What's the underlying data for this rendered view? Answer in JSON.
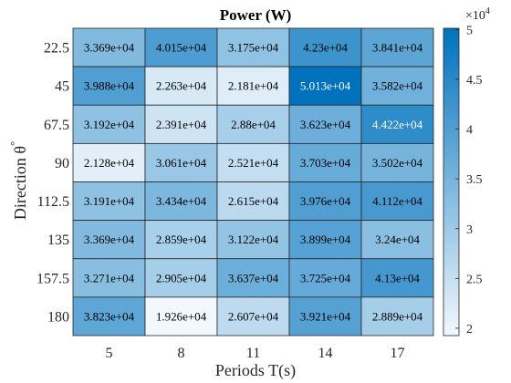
{
  "chart_data": {
    "type": "heatmap",
    "title": "Power (W)",
    "xlabel": "Periods T(s)",
    "ylabel": "Direction θ°",
    "ylabel_base": "Direction θ",
    "ylabel_sup": "°",
    "x_categories": [
      "5",
      "8",
      "11",
      "14",
      "17"
    ],
    "y_categories": [
      "22.5",
      "45",
      "67.5",
      "90",
      "112.5",
      "135",
      "157.5",
      "180"
    ],
    "values": [
      [
        33690,
        40150,
        31750,
        42300,
        38410
      ],
      [
        39880,
        22630,
        21810,
        50130,
        35820
      ],
      [
        31920,
        23910,
        28800,
        36230,
        44220
      ],
      [
        21280,
        30610,
        25210,
        37030,
        35020
      ],
      [
        31910,
        34340,
        26150,
        39760,
        41120
      ],
      [
        33690,
        28590,
        31220,
        38990,
        32400
      ],
      [
        32710,
        29050,
        36370,
        37250,
        41300
      ],
      [
        38230,
        19260,
        26070,
        39210,
        28890
      ]
    ],
    "cell_labels": [
      [
        "3.369e+04",
        "4.015e+04",
        "3.175e+04",
        "4.23e+04",
        "3.841e+04"
      ],
      [
        "3.988e+04",
        "2.263e+04",
        "2.181e+04",
        "5.013e+04",
        "3.582e+04"
      ],
      [
        "3.192e+04",
        "2.391e+04",
        "2.88e+04",
        "3.623e+04",
        "4.422e+04"
      ],
      [
        "2.128e+04",
        "3.061e+04",
        "2.521e+04",
        "3.703e+04",
        "3.502e+04"
      ],
      [
        "3.191e+04",
        "3.434e+04",
        "2.615e+04",
        "3.976e+04",
        "4.112e+04"
      ],
      [
        "3.369e+04",
        "2.859e+04",
        "3.122e+04",
        "3.899e+04",
        "3.24e+04"
      ],
      [
        "3.271e+04",
        "2.905e+04",
        "3.637e+04",
        "3.725e+04",
        "4.13e+04"
      ],
      [
        "3.823e+04",
        "1.926e+04",
        "2.607e+04",
        "3.921e+04",
        "2.889e+04"
      ]
    ],
    "colorbar": {
      "range": [
        19260,
        50130
      ],
      "ticks": [
        20000,
        25000,
        30000,
        35000,
        40000,
        45000,
        50000
      ],
      "tick_labels": [
        "2",
        "2.5",
        "3",
        "3.5",
        "4",
        "4.5",
        "5"
      ],
      "exponent_label": "×10",
      "exponent_power": "4",
      "color_low": "#f2f8fd",
      "color_high": "#0072bd"
    },
    "grid": true,
    "legend": "colorbar-right"
  }
}
